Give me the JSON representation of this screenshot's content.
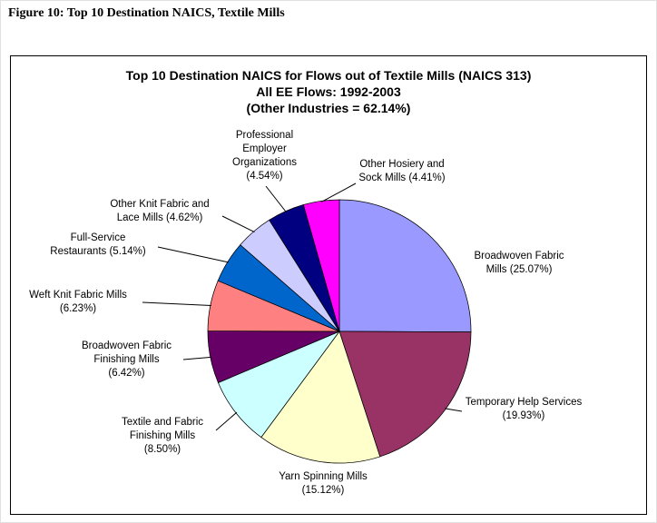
{
  "figure_caption": "Figure 10: Top 10 Destination NAICS, Textile Mills",
  "chart_data": {
    "type": "pie",
    "title_lines": [
      "Top 10 Destination NAICS for Flows out of Textile Mills (NAICS 313)",
      "All EE Flows: 1992-2003",
      "(Other Industries = 62.14%)"
    ],
    "start_angle_deg": 0,
    "direction": "clockwise",
    "slices": [
      {
        "label": "Broadwoven Fabric Mills",
        "value": 25.07,
        "display": "Broadwoven Fabric Mills (25.07%)",
        "color": "#9999FF"
      },
      {
        "label": "Temporary Help Services",
        "value": 19.93,
        "display": "Temporary Help Services (19.93%)",
        "color": "#993366"
      },
      {
        "label": "Yarn Spinning Mills",
        "value": 15.12,
        "display": "Yarn Spinning Mills (15.12%)",
        "color": "#FFFFCC"
      },
      {
        "label": "Textile and Fabric Finishing Mills",
        "value": 8.5,
        "display": "Textile and Fabric Finishing Mills (8.50%)",
        "color": "#CCFFFF"
      },
      {
        "label": "Broadwoven Fabric Finishing Mills",
        "value": 6.42,
        "display": "Broadwoven Fabric Finishing Mills (6.42%)",
        "color": "#660066"
      },
      {
        "label": "Weft Knit Fabric Mills",
        "value": 6.23,
        "display": "Weft Knit Fabric Mills (6.23%)",
        "color": "#FF8080"
      },
      {
        "label": "Full-Service Restaurants",
        "value": 5.14,
        "display": "Full-Service Restaurants (5.14%)",
        "color": "#0066CC"
      },
      {
        "label": "Other Knit Fabric and Lace Mills",
        "value": 4.62,
        "display": "Other Knit Fabric and Lace Mills (4.62%)",
        "color": "#CCCCFF"
      },
      {
        "label": "Professional Employer Organizations",
        "value": 4.54,
        "display": "Professional Employer Organizations (4.54%)",
        "color": "#000080"
      },
      {
        "label": "Other Hosiery and Sock Mills",
        "value": 4.41,
        "display": "Other Hosiery and Sock Mills (4.41%)",
        "color": "#FF00FF"
      }
    ]
  }
}
